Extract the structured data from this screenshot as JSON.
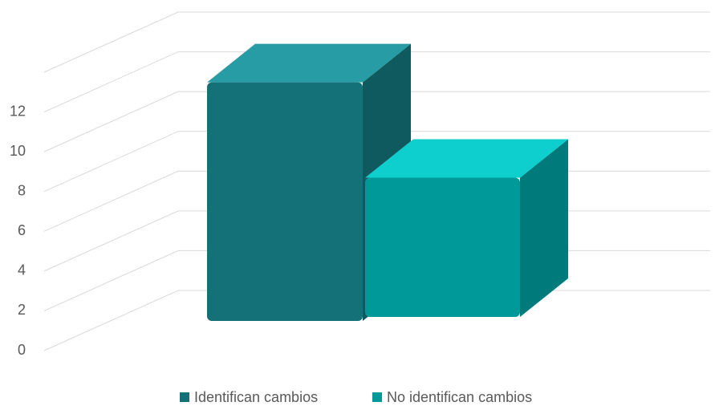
{
  "chart_data": {
    "type": "bar3d",
    "series": [
      {
        "name": "Identifican cambios",
        "color": "#137177",
        "values": [
          12
        ]
      },
      {
        "name": "No identifican cambios",
        "color": "#009999",
        "values": [
          7
        ]
      }
    ],
    "ylim": [
      0,
      14
    ],
    "yticks": [
      0,
      2,
      4,
      6,
      8,
      10,
      12
    ],
    "grid": true,
    "legend": "bottom"
  }
}
